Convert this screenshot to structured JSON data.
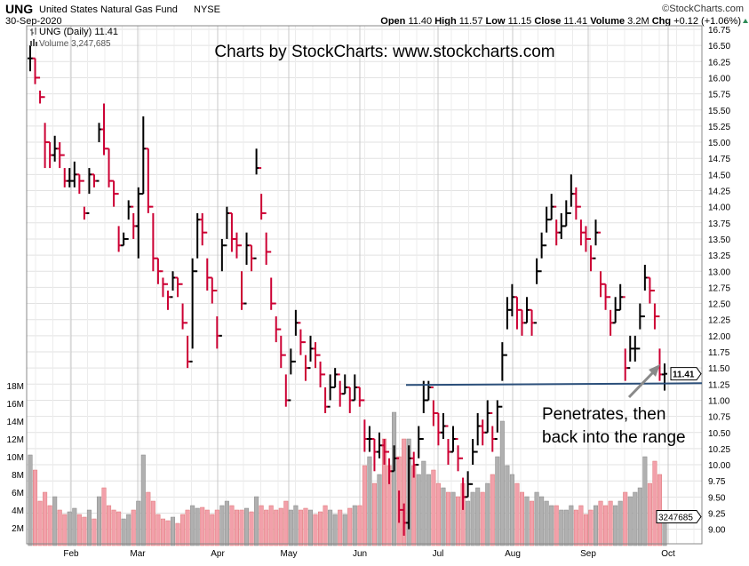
{
  "header": {
    "symbol": "UNG",
    "name": "United States Natural Gas Fund",
    "exchange": "NYSE",
    "copyright": "©StockCharts.com",
    "date": "30-Sep-2020",
    "open_label": "Open",
    "open": "11.40",
    "high_label": "High",
    "high": "11.57",
    "low_label": "Low",
    "low": "11.15",
    "close_label": "Close",
    "close": "11.41",
    "volume_label": "Volume",
    "volume": "3.2M",
    "chg_label": "Chg",
    "chg": "+0.12 (+1.06%)"
  },
  "legend": {
    "price": "UNG (Daily) 11.41",
    "volume": "Volume 3,247,685"
  },
  "watermark": "Charts by StockCharts:  www.stockcharts.com",
  "annotation": {
    "line1": "Penetrates, then",
    "line2": "back into the range"
  },
  "colors": {
    "up": "#000000",
    "down": "#cc0033",
    "vol_up": "#b0b0b0",
    "vol_down": "#f2a0aa",
    "support": "#2b4f7a",
    "arrow": "#8a8a8a"
  },
  "chart_data": {
    "type": "ohlc",
    "title": "UNG (Daily)",
    "price_axis": {
      "min": 9.0,
      "max": 16.75,
      "step": 0.25,
      "ticks": [
        "16.75",
        "16.50",
        "16.25",
        "16.00",
        "15.75",
        "15.50",
        "15.25",
        "15.00",
        "14.75",
        "14.50",
        "14.25",
        "14.00",
        "13.75",
        "13.50",
        "13.25",
        "13.00",
        "12.75",
        "12.50",
        "12.25",
        "12.00",
        "11.75",
        "11.50",
        "11.25",
        "11.00",
        "10.75",
        "10.50",
        "10.25",
        "10.00",
        "9.75",
        "9.50",
        "9.25",
        "9.00"
      ]
    },
    "last_price_label": "11.41",
    "last_volume_label": "3247685",
    "volume_axis": {
      "unit": "M",
      "ticks": [
        "18M",
        "16M",
        "14M",
        "12M",
        "10M",
        "8M",
        "6M",
        "4M",
        "2M"
      ]
    },
    "months": [
      "Feb",
      "Mar",
      "Apr",
      "May",
      "Jun",
      "Jul",
      "Aug",
      "Sep",
      "Oct"
    ],
    "support_level": 11.25,
    "bar_fields": [
      "high",
      "low",
      "close",
      "volume_millions"
    ],
    "bars": [
      [
        16.5,
        16.1,
        16.3,
        10.2
      ],
      [
        16.3,
        15.9,
        16.0,
        8.5
      ],
      [
        15.8,
        15.6,
        15.7,
        5.0
      ],
      [
        15.3,
        14.6,
        15.0,
        6.0
      ],
      [
        15.0,
        14.6,
        14.8,
        4.5
      ],
      [
        15.1,
        14.7,
        14.9,
        5.5
      ],
      [
        15.0,
        14.6,
        14.8,
        4.0
      ],
      [
        14.6,
        14.3,
        14.4,
        3.5
      ],
      [
        14.6,
        14.3,
        14.4,
        3.8
      ],
      [
        14.7,
        14.3,
        14.5,
        4.2
      ],
      [
        14.5,
        14.2,
        14.4,
        3.5
      ],
      [
        14.0,
        13.8,
        13.9,
        3.2
      ],
      [
        14.6,
        14.2,
        14.5,
        4.0
      ],
      [
        14.5,
        14.3,
        14.4,
        3.0
      ],
      [
        15.3,
        15.0,
        15.2,
        5.5
      ],
      [
        15.6,
        14.8,
        14.9,
        6.5
      ],
      [
        14.9,
        14.3,
        14.4,
        4.5
      ],
      [
        14.4,
        14.0,
        14.2,
        4.0
      ],
      [
        13.7,
        13.3,
        13.4,
        3.8
      ],
      [
        13.6,
        13.4,
        13.5,
        3.0
      ],
      [
        14.1,
        13.8,
        14.0,
        3.5
      ],
      [
        13.9,
        13.5,
        13.7,
        4.0
      ],
      [
        14.3,
        13.2,
        14.2,
        5.0
      ],
      [
        15.4,
        14.2,
        14.9,
        10.2
      ],
      [
        14.9,
        13.9,
        14.0,
        6.0
      ],
      [
        13.9,
        13.0,
        13.2,
        5.0
      ],
      [
        13.2,
        12.8,
        13.0,
        3.5
      ],
      [
        12.9,
        12.6,
        12.8,
        3.0
      ],
      [
        12.7,
        12.4,
        12.6,
        2.8
      ],
      [
        13.0,
        12.7,
        12.9,
        3.2
      ],
      [
        12.9,
        12.6,
        12.8,
        2.5
      ],
      [
        12.5,
        12.1,
        12.2,
        3.5
      ],
      [
        12.0,
        11.5,
        11.6,
        4.0
      ],
      [
        13.2,
        11.8,
        13.0,
        4.5
      ],
      [
        13.9,
        13.2,
        13.8,
        4.2
      ],
      [
        13.9,
        13.4,
        13.6,
        4.3
      ],
      [
        13.2,
        12.7,
        12.9,
        4.0
      ],
      [
        12.9,
        12.5,
        12.7,
        3.5
      ],
      [
        12.3,
        11.8,
        12.0,
        4.0
      ],
      [
        13.5,
        13.0,
        13.4,
        4.5
      ],
      [
        14.0,
        13.5,
        13.9,
        5.0
      ],
      [
        13.9,
        13.3,
        13.5,
        4.5
      ],
      [
        13.6,
        13.2,
        13.4,
        4.0
      ],
      [
        13.0,
        12.4,
        12.5,
        4.0
      ],
      [
        13.6,
        13.1,
        13.4,
        4.2
      ],
      [
        13.4,
        13.0,
        13.2,
        3.8
      ],
      [
        14.9,
        14.5,
        14.6,
        5.5
      ],
      [
        14.2,
        13.8,
        13.9,
        4.5
      ],
      [
        13.6,
        13.1,
        13.3,
        4.0
      ],
      [
        12.9,
        12.4,
        12.5,
        4.5
      ],
      [
        12.3,
        11.9,
        12.1,
        4.0
      ],
      [
        12.0,
        11.5,
        11.7,
        4.2
      ],
      [
        11.4,
        10.9,
        11.0,
        5.0
      ],
      [
        11.8,
        11.4,
        11.6,
        4.0
      ],
      [
        12.4,
        12.0,
        12.2,
        4.5
      ],
      [
        12.1,
        11.7,
        11.9,
        4.0
      ],
      [
        11.7,
        11.3,
        11.5,
        4.2
      ],
      [
        12.0,
        11.6,
        11.8,
        4.0
      ],
      [
        11.9,
        11.5,
        11.7,
        3.5
      ],
      [
        11.6,
        11.2,
        11.4,
        3.8
      ],
      [
        11.2,
        10.8,
        10.9,
        4.5
      ],
      [
        11.4,
        11.0,
        11.2,
        4.0
      ],
      [
        11.5,
        11.2,
        11.4,
        3.5
      ],
      [
        11.3,
        10.9,
        11.1,
        4.0
      ],
      [
        11.4,
        11.1,
        11.2,
        3.5
      ],
      [
        11.2,
        10.8,
        11.0,
        4.2
      ],
      [
        11.4,
        11.0,
        11.2,
        4.5
      ],
      [
        11.2,
        10.9,
        11.0,
        4.5
      ],
      [
        10.7,
        10.2,
        10.4,
        9.0
      ],
      [
        10.6,
        10.2,
        10.4,
        10.0
      ],
      [
        10.4,
        9.9,
        10.2,
        7.0
      ],
      [
        10.5,
        10.1,
        10.3,
        8.0
      ],
      [
        10.4,
        10.0,
        10.2,
        12.0
      ],
      [
        10.1,
        9.7,
        9.9,
        9.0
      ],
      [
        10.3,
        9.9,
        10.1,
        15.0
      ],
      [
        9.6,
        9.1,
        9.3,
        10.0
      ],
      [
        9.4,
        8.9,
        9.1,
        12.0
      ],
      [
        10.3,
        9.0,
        10.1,
        12.0
      ],
      [
        10.2,
        9.8,
        10.0,
        9.0
      ],
      [
        10.6,
        10.1,
        10.4,
        8.0
      ],
      [
        11.3,
        10.8,
        11.0,
        9.5
      ],
      [
        11.3,
        11.0,
        11.2,
        8.0
      ],
      [
        11.0,
        10.6,
        10.8,
        8.5
      ],
      [
        10.8,
        10.3,
        10.5,
        7.0
      ],
      [
        10.8,
        10.4,
        10.6,
        6.5
      ],
      [
        10.4,
        10.0,
        10.2,
        6.0
      ],
      [
        10.6,
        10.2,
        10.4,
        6.0
      ],
      [
        10.3,
        9.9,
        10.1,
        5.5
      ],
      [
        9.8,
        9.3,
        9.5,
        7.0
      ],
      [
        9.9,
        9.5,
        9.7,
        5.0
      ],
      [
        10.4,
        10.0,
        10.2,
        6.0
      ],
      [
        10.8,
        10.3,
        10.6,
        6.5
      ],
      [
        10.7,
        10.3,
        10.5,
        6.0
      ],
      [
        11.0,
        10.5,
        10.8,
        7.0
      ],
      [
        10.6,
        10.2,
        10.4,
        8.0
      ],
      [
        11.0,
        10.5,
        10.9,
        10.0
      ],
      [
        11.9,
        11.3,
        11.7,
        14.0
      ],
      [
        12.6,
        12.1,
        12.4,
        9.0
      ],
      [
        12.8,
        12.3,
        12.6,
        8.0
      ],
      [
        12.6,
        12.1,
        12.4,
        7.0
      ],
      [
        12.4,
        12.0,
        12.2,
        6.0
      ],
      [
        12.6,
        12.2,
        12.4,
        5.5
      ],
      [
        12.4,
        12.0,
        12.2,
        5.0
      ],
      [
        13.2,
        12.8,
        13.0,
        6.0
      ],
      [
        13.6,
        13.2,
        13.4,
        5.5
      ],
      [
        14.0,
        13.6,
        13.8,
        5.0
      ],
      [
        14.2,
        13.8,
        14.0,
        4.5
      ],
      [
        13.8,
        13.4,
        13.6,
        4.5
      ],
      [
        13.9,
        13.5,
        13.7,
        4.0
      ],
      [
        14.1,
        13.7,
        13.9,
        4.0
      ],
      [
        14.5,
        14.0,
        14.2,
        4.5
      ],
      [
        14.3,
        13.8,
        14.0,
        4.0
      ],
      [
        13.8,
        13.4,
        13.6,
        4.5
      ],
      [
        13.7,
        13.3,
        13.5,
        3.5
      ],
      [
        13.4,
        13.0,
        13.2,
        4.0
      ],
      [
        13.8,
        13.4,
        13.6,
        4.5
      ],
      [
        13.0,
        12.6,
        12.8,
        5.0
      ],
      [
        12.8,
        12.4,
        12.6,
        4.5
      ],
      [
        12.4,
        12.0,
        12.2,
        5.0
      ],
      [
        12.6,
        12.2,
        12.4,
        4.5
      ],
      [
        12.8,
        12.4,
        12.6,
        5.0
      ],
      [
        11.8,
        11.3,
        11.5,
        6.0
      ],
      [
        12.0,
        11.6,
        11.8,
        5.5
      ],
      [
        12.0,
        11.6,
        11.8,
        6.0
      ],
      [
        12.5,
        12.1,
        12.3,
        6.5
      ],
      [
        13.1,
        12.7,
        12.9,
        10.0
      ],
      [
        12.9,
        12.5,
        12.7,
        7.0
      ],
      [
        12.5,
        12.1,
        12.3,
        9.5
      ],
      [
        11.8,
        11.3,
        11.4,
        8.0
      ],
      [
        11.57,
        11.15,
        11.41,
        3.247685
      ]
    ]
  }
}
